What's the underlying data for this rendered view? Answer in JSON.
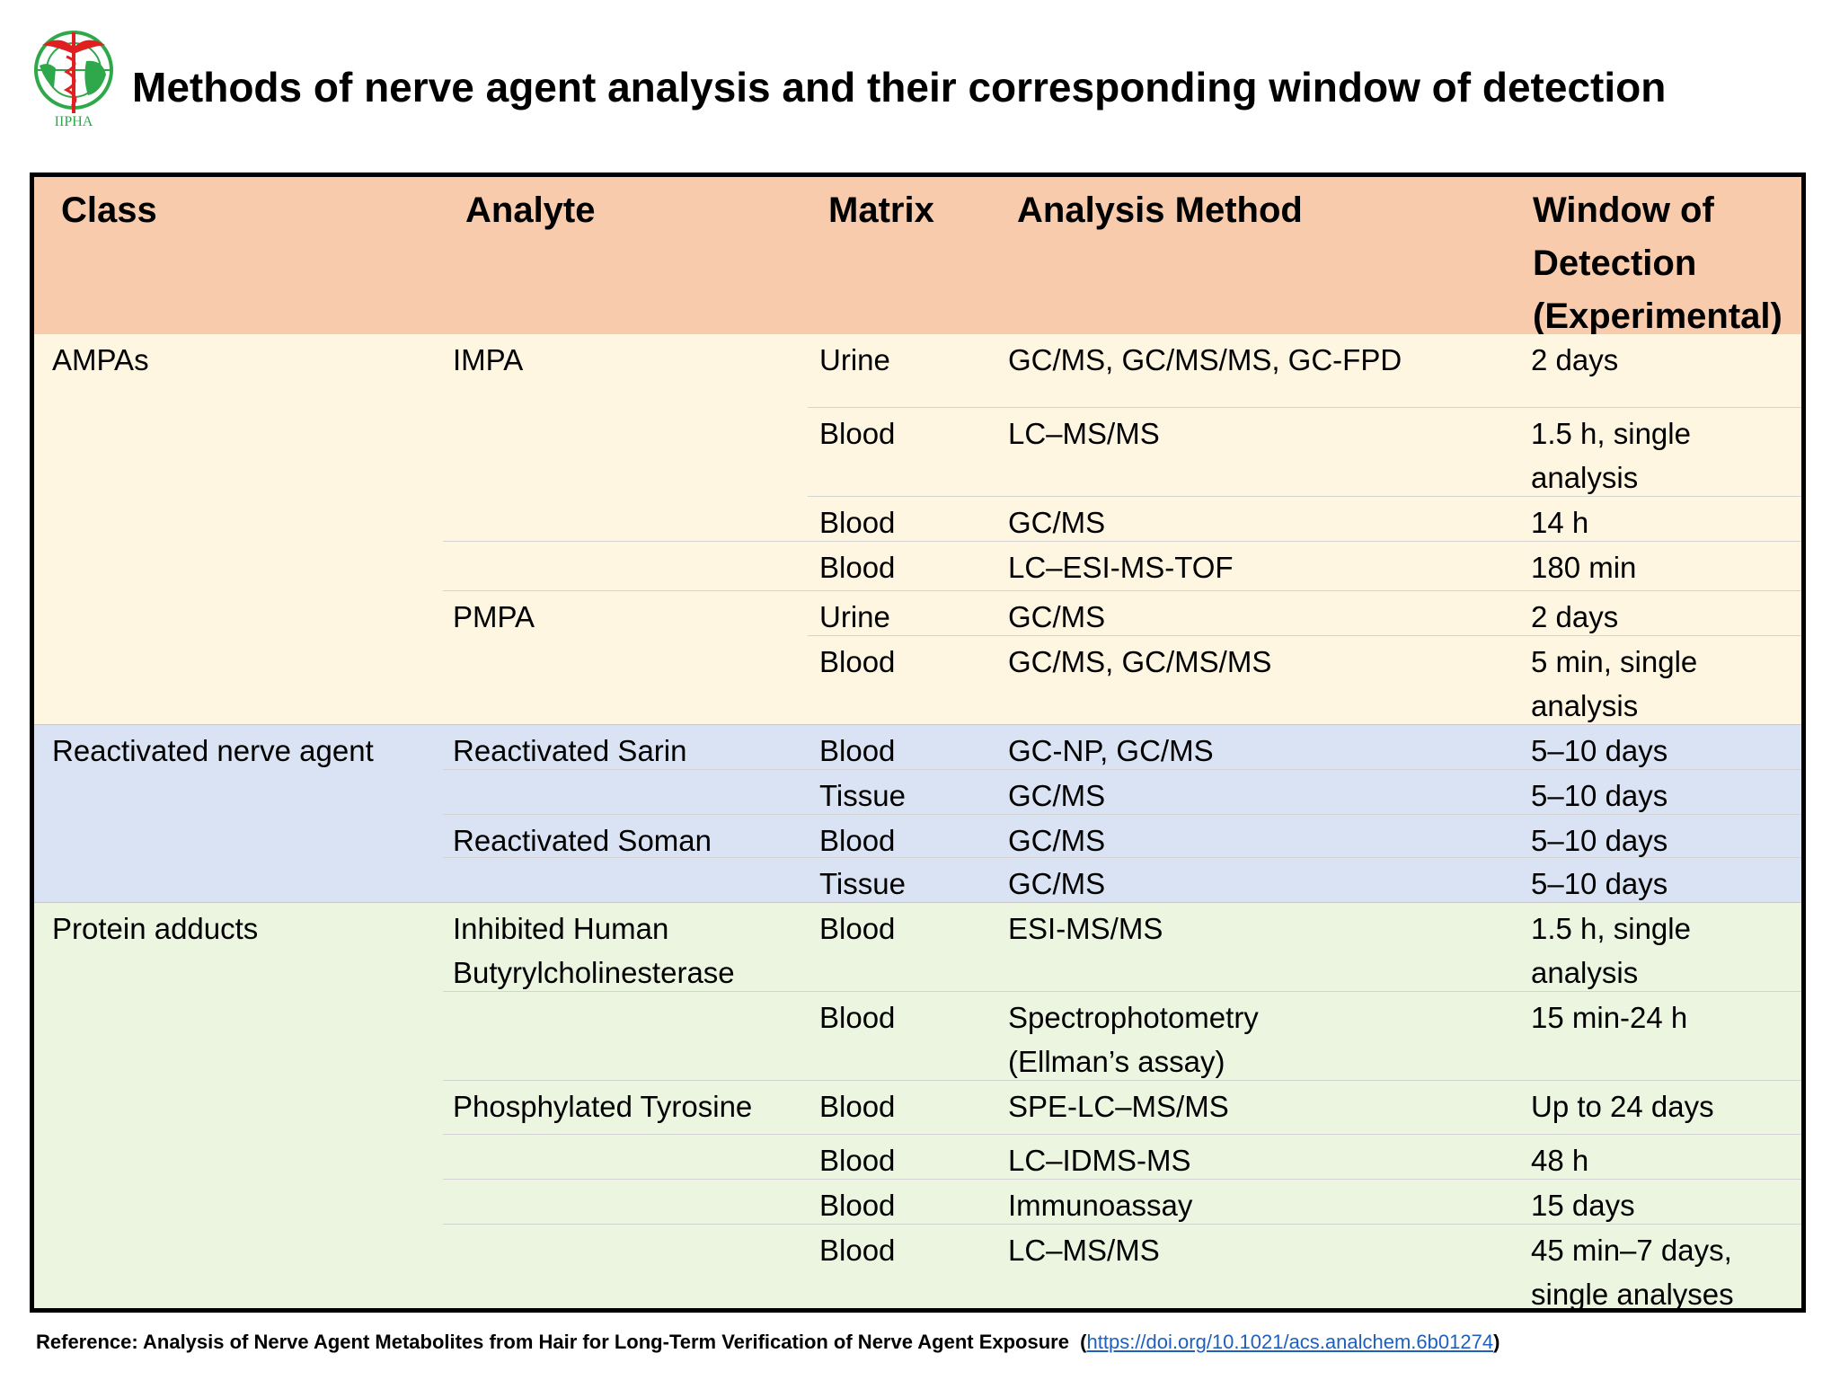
{
  "logo": {
    "text": "IIPHA",
    "colors": {
      "green": "#2ea84a",
      "red": "#e02020"
    }
  },
  "title": "Methods of nerve agent analysis and their corresponding window of detection",
  "colors": {
    "header": "#f8cbad",
    "ampas": "#fff6e2",
    "reactivated": "#dae3f3",
    "protein": "#ecf5e0"
  },
  "table": {
    "headers": [
      "Class",
      "Analyte",
      "Matrix",
      "Analysis Method",
      "Window of Detection (Experimental)"
    ],
    "header_lines": [
      "Window of",
      "Detection",
      "(Experimental)"
    ],
    "sections": [
      {
        "class": "AMPAs",
        "color_key": "ampas"
      },
      {
        "class": "Reactivated nerve agent",
        "color_key": "reactivated"
      },
      {
        "class": "Protein adducts",
        "color_key": "protein"
      }
    ],
    "rows": [
      {
        "section": 0,
        "analyte": "IMPA",
        "matrix": "Urine",
        "method": "GC/MS, GC/MS/MS, GC-FPD",
        "window": "2 days"
      },
      {
        "section": 0,
        "analyte": "",
        "matrix": "Blood",
        "method": "LC–MS/MS",
        "window": "1.5 h, single analysis"
      },
      {
        "section": 0,
        "analyte": "",
        "matrix": "Blood",
        "method": "GC/MS",
        "window": "14 h"
      },
      {
        "section": 0,
        "analyte": "",
        "matrix": "Blood",
        "method": "LC–ESI-MS-TOF",
        "window": "180 min"
      },
      {
        "section": 0,
        "analyte": "PMPA",
        "matrix": "Urine",
        "method": "GC/MS",
        "window": "2 days"
      },
      {
        "section": 0,
        "analyte": "",
        "matrix": "Blood",
        "method": "GC/MS, GC/MS/MS",
        "window": "5 min, single analysis"
      },
      {
        "section": 1,
        "analyte": "Reactivated Sarin",
        "matrix": "Blood",
        "method": "GC-NP, GC/MS",
        "window": "5–10 days"
      },
      {
        "section": 1,
        "analyte": "",
        "matrix": "Tissue",
        "method": "GC/MS",
        "window": "5–10 days"
      },
      {
        "section": 1,
        "analyte": "Reactivated Soman",
        "matrix": "Blood",
        "method": "GC/MS",
        "window": "5–10 days"
      },
      {
        "section": 1,
        "analyte": "",
        "matrix": "Tissue",
        "method": "GC/MS",
        "window": "5–10 days"
      },
      {
        "section": 2,
        "analyte": "Inhibited Human Butyrylcholinesterase",
        "matrix": "Blood",
        "method": "ESI-MS/MS",
        "window": "1.5 h, single analysis"
      },
      {
        "section": 2,
        "analyte": "",
        "matrix": "Blood",
        "method": "Spectrophotometry (Ellman’s assay)",
        "window": "15 min-24 h"
      },
      {
        "section": 2,
        "analyte": "Phosphylated Tyrosine",
        "matrix": "Blood",
        "method": "SPE-LC–MS/MS",
        "window": "Up to 24 days"
      },
      {
        "section": 2,
        "analyte": "",
        "matrix": "Blood",
        "method": "LC–IDMS-MS",
        "window": "48 h"
      },
      {
        "section": 2,
        "analyte": "",
        "matrix": "Blood",
        "method": "Immunoassay",
        "window": "15 days"
      },
      {
        "section": 2,
        "analyte": "",
        "matrix": "Blood",
        "method": "LC–MS/MS",
        "window": "45 min–7 days, single analyses"
      }
    ]
  },
  "reference": {
    "label": "Reference: Analysis of Nerve Agent Metabolites from Hair for Long-Term Verification of Nerve Agent Exposure",
    "link": "https://doi.org/10.1021/acs.analchem.6b01274"
  }
}
